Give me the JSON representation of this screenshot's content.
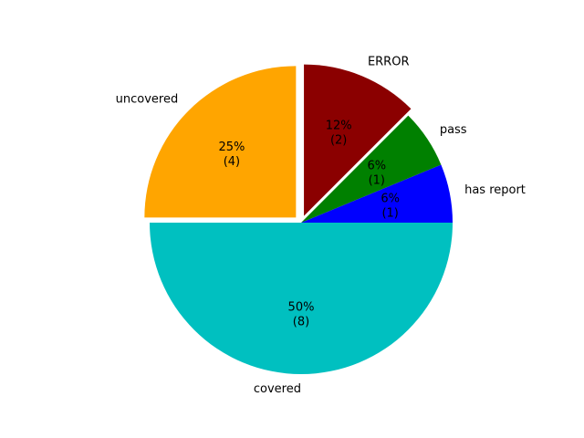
{
  "chart_data": {
    "type": "pie",
    "title": "",
    "slices": [
      {
        "label": "has report",
        "value": 1,
        "percent_label": "6%",
        "count_label": "(1)",
        "color": "#0000ff",
        "exploded": false
      },
      {
        "label": "pass",
        "value": 1,
        "percent_label": "6%",
        "count_label": "(1)",
        "color": "#008000",
        "exploded": false
      },
      {
        "label": "ERROR",
        "value": 2,
        "percent_label": "12%",
        "count_label": "(2)",
        "color": "#8b0000",
        "exploded": true
      },
      {
        "label": "uncovered",
        "value": 4,
        "percent_label": "25%",
        "count_label": "(4)",
        "color": "#ffa500",
        "exploded": true
      },
      {
        "label": "covered",
        "value": 8,
        "percent_label": "50%",
        "count_label": "(8)",
        "color": "#00c0c0",
        "exploded": false
      }
    ],
    "start_angle_deg": 0,
    "direction": "counterclockwise"
  }
}
